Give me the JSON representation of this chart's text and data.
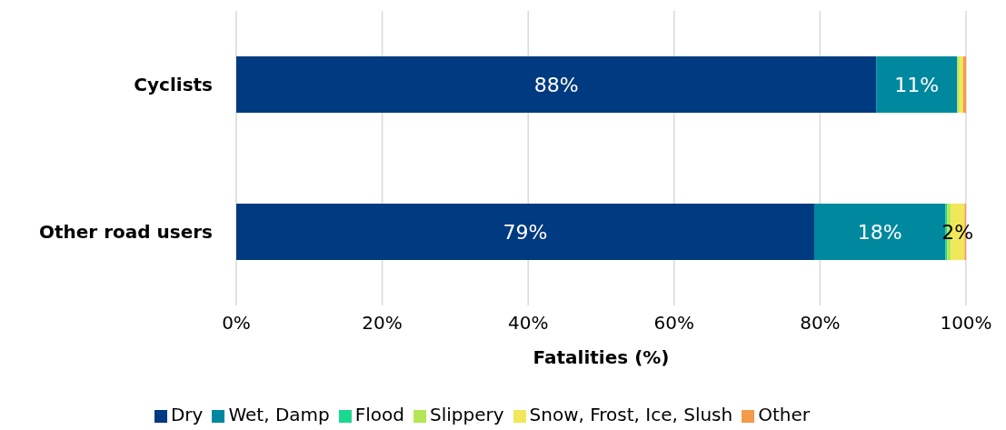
{
  "chart_data": {
    "type": "bar",
    "orientation": "horizontal",
    "stacked": true,
    "xlabel": "Fatalities (%)",
    "categories": [
      "Cyclists",
      "Other road users"
    ],
    "series": [
      {
        "name": "Dry",
        "color": "#003a80",
        "values": [
          87.7,
          79.2
        ],
        "value_labels": [
          "88%",
          "79%"
        ]
      },
      {
        "name": "Wet, Damp",
        "color": "#00889f",
        "values": [
          11.1,
          18.0
        ],
        "value_labels": [
          "11%",
          "18%"
        ]
      },
      {
        "name": "Flood",
        "color": "#1ad98e",
        "values": [
          0,
          0.2
        ]
      },
      {
        "name": "Slippery",
        "color": "#b5e655",
        "values": [
          0.3,
          0.5
        ]
      },
      {
        "name": "Snow, Frost, Ice, Slush",
        "color": "#f0e85a",
        "values": [
          0.5,
          1.9
        ],
        "value_labels": [
          null,
          "2%"
        ]
      },
      {
        "name": "Other",
        "color": "#f59a4a",
        "values": [
          0.4,
          0.2
        ]
      }
    ],
    "xlim": [
      0,
      100
    ],
    "xticks": [
      {
        "value": 0,
        "label": "0%"
      },
      {
        "value": 20,
        "label": "20%"
      },
      {
        "value": 40,
        "label": "40%"
      },
      {
        "value": 60,
        "label": "60%"
      },
      {
        "value": 80,
        "label": "80%"
      },
      {
        "value": 100,
        "label": "100%"
      }
    ],
    "grid": "x",
    "legend": "bottom"
  }
}
